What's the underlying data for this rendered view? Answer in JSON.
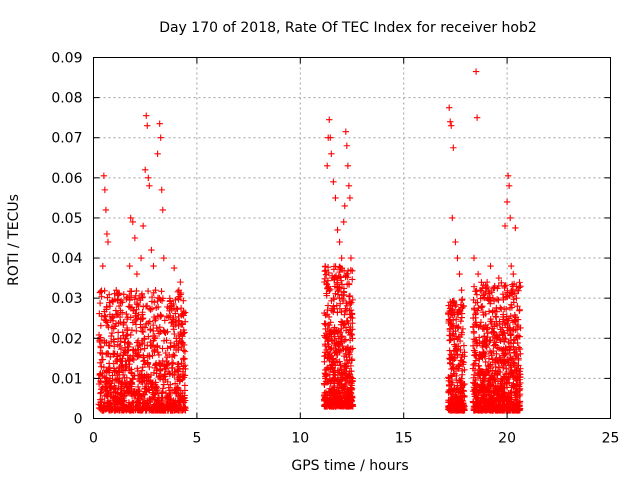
{
  "chart_data": {
    "type": "scatter",
    "title": "Day 170 of 2018, Rate Of TEC Index for receiver hob2",
    "xlabel": "GPS time / hours",
    "ylabel": "ROTI / TECUs",
    "xlim": [
      0,
      25
    ],
    "ylim": [
      0,
      0.09
    ],
    "x_ticks": [
      0,
      5,
      10,
      15,
      20,
      25
    ],
    "y_ticks": [
      0,
      0.01,
      0.02,
      0.03,
      0.04,
      0.05,
      0.06,
      0.07,
      0.08,
      0.09
    ],
    "x_tick_labels": [
      "0",
      "5",
      "10",
      "15",
      "20",
      "25"
    ],
    "y_tick_labels": [
      "0",
      "0.01",
      "0.02",
      "0.03",
      "0.04",
      "0.05",
      "0.06",
      "0.07",
      "0.08",
      "0.09"
    ],
    "grid": true,
    "marker": "+",
    "color": "#ff0000",
    "series": [
      {
        "name": "",
        "points": [
          [
            0.35,
            0.018
          ],
          [
            0.4,
            0.0255
          ],
          [
            0.45,
            0.038
          ],
          [
            0.5,
            0.0605
          ],
          [
            0.55,
            0.057
          ],
          [
            0.6,
            0.052
          ],
          [
            0.65,
            0.046
          ],
          [
            0.7,
            0.044
          ],
          [
            0.8,
            0.028
          ],
          [
            0.9,
            0.025
          ],
          [
            1.0,
            0.018
          ],
          [
            1.1,
            0.032
          ],
          [
            1.2,
            0.031
          ],
          [
            1.3,
            0.024
          ],
          [
            1.4,
            0.015
          ],
          [
            1.55,
            0.013
          ],
          [
            1.65,
            0.021
          ],
          [
            1.75,
            0.038
          ],
          [
            1.8,
            0.05
          ],
          [
            1.9,
            0.049
          ],
          [
            2.0,
            0.045
          ],
          [
            2.1,
            0.036
          ],
          [
            2.2,
            0.03
          ],
          [
            2.3,
            0.04
          ],
          [
            2.4,
            0.048
          ],
          [
            2.5,
            0.062
          ],
          [
            2.55,
            0.0755
          ],
          [
            2.6,
            0.073
          ],
          [
            2.65,
            0.06
          ],
          [
            2.7,
            0.058
          ],
          [
            2.8,
            0.042
          ],
          [
            2.9,
            0.038
          ],
          [
            3.0,
            0.032
          ],
          [
            3.1,
            0.066
          ],
          [
            3.2,
            0.0735
          ],
          [
            3.25,
            0.07
          ],
          [
            3.3,
            0.057
          ],
          [
            3.35,
            0.052
          ],
          [
            3.4,
            0.04
          ],
          [
            3.8,
            0.024
          ],
          [
            3.9,
            0.0375
          ],
          [
            4.0,
            0.02
          ],
          [
            4.1,
            0.03
          ],
          [
            4.2,
            0.034
          ],
          [
            4.3,
            0.026
          ],
          [
            4.35,
            0.015
          ],
          [
            11.3,
            0.063
          ],
          [
            11.35,
            0.07
          ],
          [
            11.4,
            0.0745
          ],
          [
            11.45,
            0.07
          ],
          [
            11.5,
            0.066
          ],
          [
            11.6,
            0.059
          ],
          [
            11.7,
            0.055
          ],
          [
            11.8,
            0.047
          ],
          [
            11.9,
            0.044
          ],
          [
            12.0,
            0.04
          ],
          [
            12.1,
            0.049
          ],
          [
            12.15,
            0.053
          ],
          [
            12.2,
            0.0715
          ],
          [
            12.25,
            0.068
          ],
          [
            12.3,
            0.063
          ],
          [
            12.35,
            0.058
          ],
          [
            12.4,
            0.055
          ],
          [
            12.45,
            0.04
          ],
          [
            17.2,
            0.0775
          ],
          [
            17.25,
            0.074
          ],
          [
            17.3,
            0.073
          ],
          [
            17.4,
            0.0675
          ],
          [
            17.35,
            0.05
          ],
          [
            17.5,
            0.044
          ],
          [
            17.6,
            0.04
          ],
          [
            17.7,
            0.036
          ],
          [
            17.8,
            0.032
          ],
          [
            17.9,
            0.028
          ],
          [
            18.4,
            0.04
          ],
          [
            18.5,
            0.0865
          ],
          [
            18.55,
            0.075
          ],
          [
            18.6,
            0.036
          ],
          [
            18.7,
            0.032
          ],
          [
            18.8,
            0.028
          ],
          [
            19.2,
            0.038
          ],
          [
            19.4,
            0.033
          ],
          [
            19.6,
            0.035
          ],
          [
            19.8,
            0.031
          ],
          [
            19.9,
            0.048
          ],
          [
            20.0,
            0.054
          ],
          [
            20.05,
            0.0605
          ],
          [
            20.1,
            0.058
          ],
          [
            20.15,
            0.05
          ],
          [
            20.2,
            0.038
          ],
          [
            20.3,
            0.036
          ],
          [
            20.4,
            0.0475
          ],
          [
            20.45,
            0.03
          ],
          [
            20.5,
            0.028
          ]
        ],
        "clusters": [
          {
            "x": [
              0.25,
              4.45
            ],
            "y": [
              0.002,
              0.032
            ],
            "n": 1100
          },
          {
            "x": [
              11.15,
              12.55
            ],
            "y": [
              0.003,
              0.038
            ],
            "n": 600
          },
          {
            "x": [
              17.15,
              17.95
            ],
            "y": [
              0.002,
              0.03
            ],
            "n": 300
          },
          {
            "x": [
              18.35,
              20.65
            ],
            "y": [
              0.002,
              0.034
            ],
            "n": 900
          }
        ]
      }
    ]
  }
}
